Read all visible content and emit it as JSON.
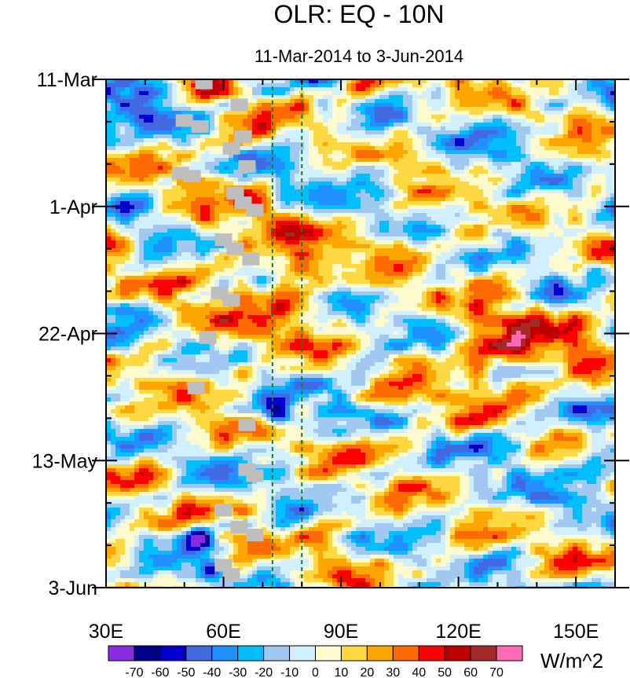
{
  "chart_data": {
    "type": "heatmap",
    "title": "OLR: EQ - 10N",
    "subtitle": "11-Mar-2014 to 3-Jun-2014",
    "x_axis": {
      "range": [
        30,
        160
      ],
      "ticks": [
        30,
        60,
        90,
        120,
        150
      ],
      "tick_labels": [
        "30E",
        "60E",
        "90E",
        "120E",
        "150E"
      ],
      "minor_step": 10
    },
    "y_axis": {
      "start_date": "11-Mar-2014",
      "end_date": "3-Jun-2014",
      "total_days": 84,
      "ticks_days": [
        0,
        21,
        42,
        63,
        84
      ],
      "tick_labels": [
        "11-Mar",
        "1-Apr",
        "22-Apr",
        "13-May",
        "3-Jun"
      ],
      "minor_step_days": 7,
      "direction": "top-to-bottom"
    },
    "reference_lines_lon": [
      72.5,
      80
    ],
    "colorbar": {
      "unit": "W/m^2",
      "levels": [
        -70,
        -60,
        -50,
        -40,
        -30,
        -20,
        -10,
        0,
        10,
        20,
        30,
        40,
        50,
        60,
        70
      ],
      "level_labels": [
        "-70",
        "-60",
        "-50",
        "-40",
        "-30",
        "-20",
        "-10",
        "0",
        "10",
        "20",
        "30",
        "40",
        "50",
        "60",
        "70"
      ],
      "colors": [
        "#8a2be2",
        "#00008b",
        "#0000cd",
        "#4169e1",
        "#1e90ff",
        "#00bfff",
        "#a0c8f0",
        "#d0f0ff",
        "#fffacd",
        "#ffd740",
        "#ffa500",
        "#ff6a00",
        "#ff0000",
        "#c00000",
        "#a52a2a",
        "#ff69b4"
      ]
    }
  }
}
